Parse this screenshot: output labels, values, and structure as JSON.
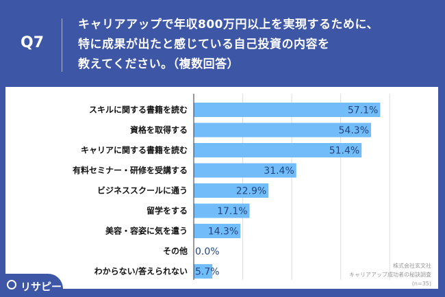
{
  "header": {
    "question": "Q7",
    "title_lines": [
      "キャリアアップで年収800万円以上を実現するために、",
      "特に成果が出たと感じている自己投資の内容を",
      "教えてください。（複数回答）"
    ]
  },
  "chart_data": {
    "type": "bar",
    "orientation": "horizontal",
    "categories": [
      "スキルに関する書籍を読む",
      "資格を取得する",
      "キャリアに関する書籍を読む",
      "有料セミナー・研修を受講する",
      "ビジネススクールに通う",
      "留学をする",
      "美容・容姿に気を遣う",
      "その他",
      "わからない/答えられない"
    ],
    "values": [
      57.1,
      54.3,
      51.4,
      31.4,
      22.9,
      17.1,
      14.3,
      0.0,
      5.7
    ],
    "value_labels": [
      "57.1%",
      "54.3%",
      "51.4%",
      "31.4%",
      "22.9%",
      "17.1%",
      "14.3%",
      "0.0%",
      "5.7%"
    ],
    "xlim": [
      0,
      75
    ],
    "grid_step": 15,
    "grid": true,
    "bar_color": "#72bdf9",
    "label_color": "#23467e"
  },
  "source": {
    "lines": [
      "株式会社玄文社",
      "キャリアアップ成功者の秘訣調査",
      "(n=35)"
    ]
  },
  "logo": {
    "text": "リサピー"
  },
  "colors": {
    "background": "#3d56a6",
    "panel": "#ffffff"
  }
}
